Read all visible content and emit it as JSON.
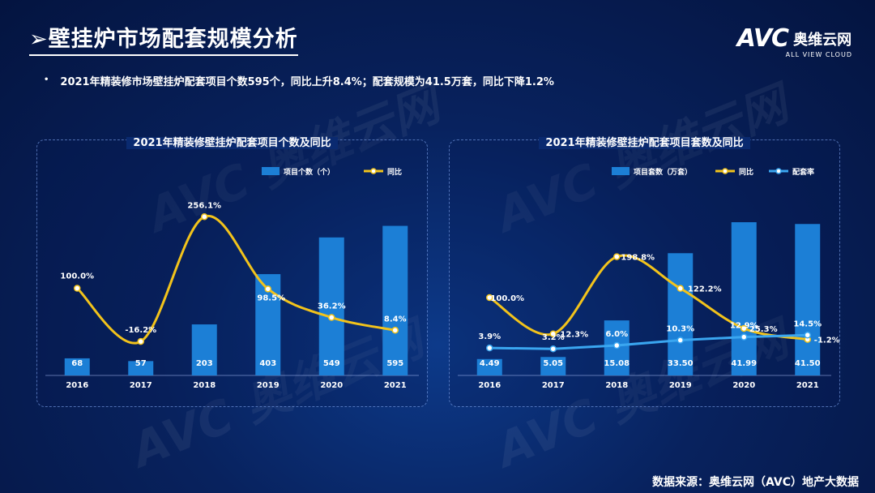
{
  "title": "壁挂炉市场配套规模分析",
  "logo": {
    "mark": "AVC",
    "cn": "奥维云网",
    "en": "ALL VIEW CLOUD"
  },
  "bullet": "2021年精装修市场壁挂炉配套项目个数595个，同比上升8.4%；配套规模为41.5万套，同比下降1.2%",
  "source": "数据来源：奥维云网（AVC）地产大数据",
  "watermark": "AVC 奥维云网",
  "colors": {
    "bar": "#1c7fd6",
    "yoy": "#f2c31b",
    "rate": "#3aa6f0"
  },
  "chart_data": [
    {
      "type": "bar",
      "title": "2021年精装修壁挂炉配套项目个数及同比",
      "categories": [
        "2016",
        "2017",
        "2018",
        "2019",
        "2020",
        "2021"
      ],
      "series": [
        {
          "name": "项目个数（个）",
          "kind": "bar",
          "values": [
            68,
            57,
            203,
            403,
            549,
            595
          ],
          "labels": [
            "68",
            "57",
            "203",
            "403",
            "549",
            "595"
          ]
        },
        {
          "name": "同比",
          "kind": "line",
          "values": [
            100.0,
            -16.2,
            256.1,
            98.5,
            36.2,
            8.4
          ],
          "labels": [
            "100.0%",
            "-16.2%",
            "256.1%",
            "98.5%",
            "36.2%",
            "8.4%"
          ]
        }
      ],
      "legend": "top-right"
    },
    {
      "type": "bar",
      "title": "2021年精装修壁挂炉配套项目套数及同比",
      "categories": [
        "2016",
        "2017",
        "2018",
        "2019",
        "2020",
        "2021"
      ],
      "series": [
        {
          "name": "项目套数（万套）",
          "kind": "bar",
          "values": [
            4.49,
            5.05,
            15.08,
            33.5,
            41.99,
            41.5
          ],
          "labels": [
            "4.49",
            "5.05",
            "15.08",
            "33.50",
            "41.99",
            "41.50"
          ]
        },
        {
          "name": "同比",
          "kind": "line",
          "values": [
            100.0,
            12.3,
            198.8,
            122.2,
            25.3,
            -1.2
          ],
          "labels": [
            "100.0%",
            "12.3%",
            "198.8%",
            "122.2%",
            "25.3%",
            "-1.2%"
          ]
        },
        {
          "name": "配套率",
          "kind": "line",
          "values": [
            3.9,
            3.2,
            6.0,
            10.3,
            12.9,
            14.5
          ],
          "labels": [
            "3.9%",
            "3.2%",
            "6.0%",
            "10.3%",
            "12.9%",
            "14.5%"
          ]
        }
      ],
      "legend": "top-right"
    }
  ]
}
